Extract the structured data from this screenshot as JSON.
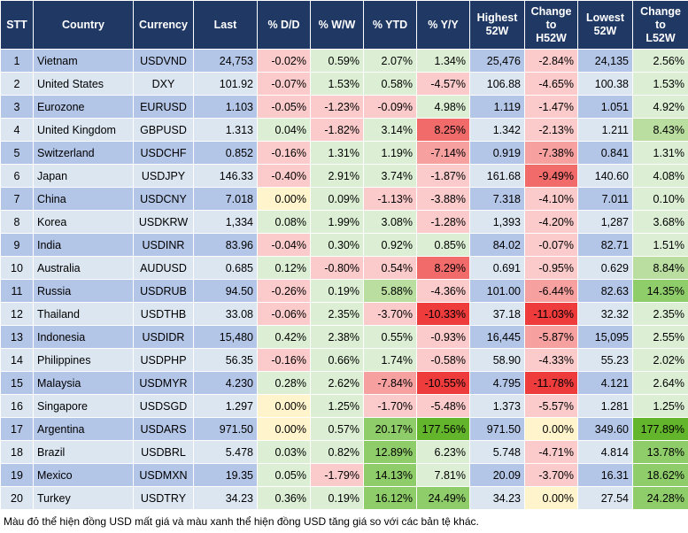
{
  "table": {
    "header": [
      "STT",
      "Country",
      "Currency",
      "Last",
      "% D/D",
      "% W/W",
      "% YTD",
      "% Y/Y",
      "Highest\n52W",
      "Change\nto\nH52W",
      "Lowest\n52W",
      "Change\nto\nL52W"
    ],
    "rows": [
      [
        "1",
        "Vietnam",
        "USDVND",
        "24,753",
        "-0.02%",
        "0.59%",
        "2.07%",
        "1.34%",
        "25,476",
        "-2.84%",
        "24,135",
        "2.56%"
      ],
      [
        "2",
        "United States",
        "DXY",
        "101.92",
        "-0.07%",
        "1.53%",
        "0.58%",
        "-4.57%",
        "106.88",
        "-4.65%",
        "100.38",
        "1.53%"
      ],
      [
        "3",
        "Eurozone",
        "EURUSD",
        "1.103",
        "-0.05%",
        "-1.23%",
        "-0.09%",
        "4.98%",
        "1.119",
        "-1.47%",
        "1.051",
        "4.92%"
      ],
      [
        "4",
        "United Kingdom",
        "GBPUSD",
        "1.313",
        "0.04%",
        "-1.82%",
        "3.14%",
        "8.25%",
        "1.342",
        "-2.13%",
        "1.211",
        "8.43%"
      ],
      [
        "5",
        "Switzerland",
        "USDCHF",
        "0.852",
        "-0.16%",
        "1.31%",
        "1.19%",
        "-7.14%",
        "0.919",
        "-7.38%",
        "0.841",
        "1.31%"
      ],
      [
        "6",
        "Japan",
        "USDJPY",
        "146.33",
        "-0.40%",
        "2.91%",
        "3.74%",
        "-1.87%",
        "161.68",
        "-9.49%",
        "140.60",
        "4.08%"
      ],
      [
        "7",
        "China",
        "USDCNY",
        "7.018",
        "0.00%",
        "0.09%",
        "-1.13%",
        "-3.88%",
        "7.318",
        "-4.10%",
        "7.011",
        "0.10%"
      ],
      [
        "8",
        "Korea",
        "USDKRW",
        "1,334",
        "0.08%",
        "1.99%",
        "3.08%",
        "-1.28%",
        "1,393",
        "-4.20%",
        "1,287",
        "3.68%"
      ],
      [
        "9",
        "India",
        "USDINR",
        "83.96",
        "-0.04%",
        "0.30%",
        "0.92%",
        "0.85%",
        "84.02",
        "-0.07%",
        "82.71",
        "1.51%"
      ],
      [
        "10",
        "Australia",
        "AUDUSD",
        "0.685",
        "0.12%",
        "-0.80%",
        "0.54%",
        "8.29%",
        "0.691",
        "-0.95%",
        "0.629",
        "8.84%"
      ],
      [
        "11",
        "Russia",
        "USDRUB",
        "94.50",
        "-0.26%",
        "0.19%",
        "5.88%",
        "-4.36%",
        "101.00",
        "-6.44%",
        "82.63",
        "14.35%"
      ],
      [
        "12",
        "Thailand",
        "USDTHB",
        "33.08",
        "-0.06%",
        "2.35%",
        "-3.70%",
        "-10.33%",
        "37.18",
        "-11.03%",
        "32.32",
        "2.35%"
      ],
      [
        "13",
        "Indonesia",
        "USDIDR",
        "15,480",
        "0.42%",
        "2.38%",
        "0.55%",
        "-0.93%",
        "16,445",
        "-5.87%",
        "15,095",
        "2.55%"
      ],
      [
        "14",
        "Philippines",
        "USDPHP",
        "56.35",
        "-0.16%",
        "0.66%",
        "1.74%",
        "-0.58%",
        "58.90",
        "-4.33%",
        "55.23",
        "2.02%"
      ],
      [
        "15",
        "Malaysia",
        "USDMYR",
        "4.230",
        "0.28%",
        "2.62%",
        "-7.84%",
        "-10.55%",
        "4.795",
        "-11.78%",
        "4.121",
        "2.64%"
      ],
      [
        "16",
        "Singapore",
        "USDSGD",
        "1.297",
        "0.00%",
        "1.25%",
        "-1.70%",
        "-5.48%",
        "1.373",
        "-5.57%",
        "1.281",
        "1.25%"
      ],
      [
        "17",
        "Argentina",
        "USDARS",
        "971.50",
        "0.00%",
        "0.57%",
        "20.17%",
        "177.56%",
        "971.50",
        "0.00%",
        "349.60",
        "177.89%"
      ],
      [
        "18",
        "Brazil",
        "USDBRL",
        "5.478",
        "0.03%",
        "0.82%",
        "12.89%",
        "6.23%",
        "5.748",
        "-4.71%",
        "4.814",
        "13.78%"
      ],
      [
        "19",
        "Mexico",
        "USDMXN",
        "19.35",
        "0.05%",
        "-1.79%",
        "14.13%",
        "7.81%",
        "20.09",
        "-3.70%",
        "16.31",
        "18.62%"
      ],
      [
        "20",
        "Turkey",
        "USDTRY",
        "34.23",
        "0.36%",
        "0.19%",
        "16.12%",
        "24.49%",
        "34.23",
        "0.00%",
        "27.54",
        "24.28%"
      ]
    ],
    "cell_colors": [
      [
        null,
        null,
        null,
        null,
        "#fbcaca",
        "#dcefd4",
        "#dcefd4",
        "#dcefd4",
        null,
        "#fbcaca",
        null,
        "#dcefd4"
      ],
      [
        null,
        null,
        null,
        null,
        "#fbcaca",
        "#dcefd4",
        "#dcefd4",
        "#fbcaca",
        null,
        "#fbcaca",
        null,
        "#dcefd4"
      ],
      [
        null,
        null,
        null,
        null,
        "#fbcaca",
        "#fbcaca",
        "#fbcaca",
        "#dcefd4",
        null,
        "#fbcaca",
        null,
        "#dcefd4"
      ],
      [
        null,
        null,
        null,
        null,
        "#dcefd4",
        "#fbcaca",
        "#dcefd4",
        "#f26b6b",
        null,
        "#fbcaca",
        null,
        "#b9dea0"
      ],
      [
        null,
        null,
        null,
        null,
        "#fbcaca",
        "#dcefd4",
        "#dcefd4",
        "#f7a0a0",
        null,
        "#f7a0a0",
        null,
        "#dcefd4"
      ],
      [
        null,
        null,
        null,
        null,
        "#fbcaca",
        "#dcefd4",
        "#dcefd4",
        "#fbcaca",
        null,
        "#f26b6b",
        null,
        "#dcefd4"
      ],
      [
        null,
        null,
        null,
        null,
        "#fff4cc",
        "#dcefd4",
        "#fbcaca",
        "#fbcaca",
        null,
        "#fbcaca",
        null,
        "#dcefd4"
      ],
      [
        null,
        null,
        null,
        null,
        "#dcefd4",
        "#dcefd4",
        "#dcefd4",
        "#fbcaca",
        null,
        "#fbcaca",
        null,
        "#dcefd4"
      ],
      [
        null,
        null,
        null,
        null,
        "#fbcaca",
        "#dcefd4",
        "#dcefd4",
        "#dcefd4",
        null,
        "#fbcaca",
        null,
        "#dcefd4"
      ],
      [
        null,
        null,
        null,
        null,
        "#dcefd4",
        "#fbcaca",
        "#fbcaca",
        "#f26b6b",
        null,
        "#fbcaca",
        null,
        "#b9dea0"
      ],
      [
        null,
        null,
        null,
        null,
        "#fbcaca",
        "#dcefd4",
        "#b9dea0",
        "#fbcaca",
        null,
        "#f7a0a0",
        null,
        "#8fcc6a"
      ],
      [
        null,
        null,
        null,
        null,
        "#fbcaca",
        "#dcefd4",
        "#fbcaca",
        "#ee3b3b",
        null,
        "#ee3b3b",
        null,
        "#dcefd4"
      ],
      [
        null,
        null,
        null,
        null,
        "#dcefd4",
        "#dcefd4",
        "#dcefd4",
        "#fbcaca",
        null,
        "#f7a0a0",
        null,
        "#dcefd4"
      ],
      [
        null,
        null,
        null,
        null,
        "#fbcaca",
        "#dcefd4",
        "#dcefd4",
        "#fbcaca",
        null,
        "#fbcaca",
        null,
        "#dcefd4"
      ],
      [
        null,
        null,
        null,
        null,
        "#dcefd4",
        "#dcefd4",
        "#f7a0a0",
        "#ee3b3b",
        null,
        "#ee3b3b",
        null,
        "#dcefd4"
      ],
      [
        null,
        null,
        null,
        null,
        "#fff4cc",
        "#dcefd4",
        "#fbcaca",
        "#fbcaca",
        null,
        "#fbcaca",
        null,
        "#dcefd4"
      ],
      [
        null,
        null,
        null,
        null,
        "#fff4cc",
        "#dcefd4",
        "#8fcc6a",
        "#63b52c",
        null,
        "#fff4cc",
        null,
        "#63b52c"
      ],
      [
        null,
        null,
        null,
        null,
        "#dcefd4",
        "#dcefd4",
        "#8fcc6a",
        "#dcefd4",
        null,
        "#fbcaca",
        null,
        "#8fcc6a"
      ],
      [
        null,
        null,
        null,
        null,
        "#dcefd4",
        "#fbcaca",
        "#8fcc6a",
        "#dcefd4",
        null,
        "#fbcaca",
        null,
        "#8fcc6a"
      ],
      [
        null,
        null,
        null,
        null,
        "#dcefd4",
        "#dcefd4",
        "#8fcc6a",
        "#8fcc6a",
        null,
        "#fff4cc",
        null,
        "#8fcc6a"
      ]
    ]
  },
  "footnote": "Màu đỏ thể hiện đồng USD mất giá và màu xanh thể hiện đồng USD tăng giá so với các bản tệ khác."
}
